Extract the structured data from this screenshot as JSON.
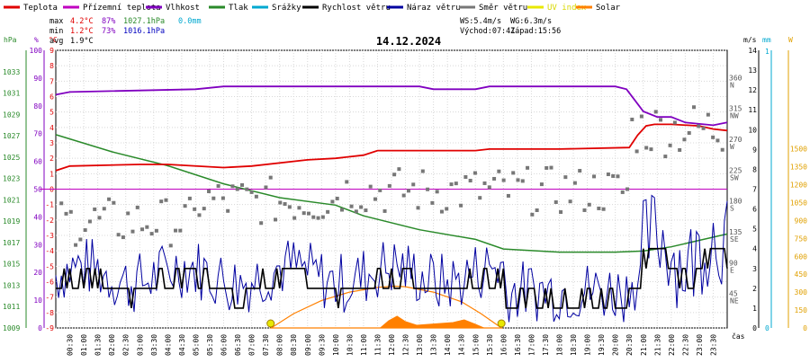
{
  "chart_data": {
    "type": "line",
    "title": "14.12.2024",
    "legend": [
      {
        "name": "Teplota",
        "color": "#e00000"
      },
      {
        "name": "Přízemní teplota",
        "color": "#c000c0"
      },
      {
        "name": "Vlhkost",
        "color": "#8000c0"
      },
      {
        "name": "Tlak",
        "color": "#2a8a2a"
      },
      {
        "name": "Srážky",
        "color": "#00a8d0"
      },
      {
        "name": "Rychlost větru",
        "color": "#000000"
      },
      {
        "name": "Náraz větru",
        "color": "#0000a0"
      },
      {
        "name": "Směr větru",
        "color": "#777777"
      },
      {
        "name": "UV index",
        "color": "#e8e800"
      },
      {
        "name": "Solar",
        "color": "#ff8000"
      }
    ],
    "stats": {
      "max": {
        "label": "max",
        "temp": "4.2°C",
        "hum": "87%",
        "press": "1027.1hPa",
        "rain": "0.0mm"
      },
      "min": {
        "label": "min",
        "temp": "1.2°C",
        "hum": "73%",
        "press": "1016.1hPa"
      },
      "avg": {
        "label": "avg",
        "temp": "1.9°C"
      }
    },
    "info": {
      "ws": "WS:5.4m/s",
      "wg": "WG:6.3m/s",
      "sunrise": "Východ:07:41",
      "sunset": "Západ:15:56"
    },
    "axes": {
      "hpa": {
        "unit": "hPa",
        "ticks": [
          "1009",
          "1011",
          "1013",
          "1015",
          "1017",
          "1019",
          "1021",
          "1023",
          "1025",
          "1027",
          "1029",
          "1031",
          "1033"
        ],
        "range": [
          1009,
          1035
        ]
      },
      "pct": {
        "unit": "%",
        "ticks": [
          "0",
          "10",
          "20",
          "30",
          "40",
          "50",
          "60",
          "70",
          "80",
          "90",
          "100"
        ],
        "range": [
          0,
          100
        ]
      },
      "temp": {
        "unit": "°C",
        "ticks": [
          "-9",
          "-8",
          "-7",
          "-6",
          "-5",
          "-4",
          "-3",
          "-2",
          "-1",
          "0",
          "1",
          "2",
          "3",
          "4",
          "5",
          "6",
          "7",
          "8",
          "9"
        ],
        "range": [
          -9,
          9
        ]
      },
      "dir": {
        "ticks": [
          {
            "deg": 360,
            "lab": "N"
          },
          {
            "deg": 315,
            "lab": "NW"
          },
          {
            "deg": 270,
            "lab": "W"
          },
          {
            "deg": 225,
            "lab": "SW"
          },
          {
            "deg": 180,
            "lab": "S"
          },
          {
            "deg": 135,
            "lab": "SE"
          },
          {
            "deg": 90,
            "lab": "E"
          },
          {
            "deg": 45,
            "lab": "NE"
          }
        ],
        "range": [
          0,
          405
        ]
      },
      "ms": {
        "unit": "m/s",
        "ticks": [
          "0",
          "1",
          "2",
          "3",
          "4",
          "5",
          "6",
          "7",
          "8",
          "9",
          "10",
          "11",
          "12",
          "13",
          "14"
        ],
        "range": [
          0,
          14
        ]
      },
      "mm": {
        "unit": "mm",
        "ticks": [
          "0",
          "1"
        ],
        "range": [
          0,
          1
        ]
      },
      "w": {
        "unit": "W",
        "ticks": [
          "0",
          "150",
          "300",
          "450",
          "600",
          "750",
          "900",
          "1050",
          "1200",
          "1350",
          "1500"
        ],
        "range": [
          0,
          1500
        ]
      },
      "x": {
        "label": "čas",
        "ticks": [
          "00:30",
          "01:00",
          "01:30",
          "02:00",
          "02:30",
          "03:00",
          "03:30",
          "04:00",
          "04:30",
          "05:00",
          "05:30",
          "06:00",
          "06:30",
          "07:00",
          "07:30",
          "08:00",
          "08:30",
          "09:00",
          "09:30",
          "10:00",
          "10:30",
          "11:00",
          "11:30",
          "12:00",
          "12:30",
          "13:00",
          "13:30",
          "14:00",
          "14:30",
          "15:00",
          "15:30",
          "16:00",
          "16:30",
          "17:00",
          "17:30",
          "18:00",
          "18:30",
          "19:00",
          "19:30",
          "20:00",
          "20:30",
          "21:00",
          "21:30",
          "22:00",
          "22:30",
          "23:00",
          "23:30"
        ],
        "range_hours": [
          0,
          24
        ]
      }
    },
    "series": [
      {
        "name": "Teplota",
        "unit": "°C",
        "x": [
          0,
          0.5,
          3,
          4,
          6,
          7,
          9,
          10,
          11,
          11.5,
          15,
          15.5,
          18,
          20.5,
          20.8,
          21.1,
          21.4,
          22,
          23,
          23.5,
          24
        ],
        "values": [
          1.2,
          1.5,
          1.6,
          1.6,
          1.4,
          1.5,
          1.9,
          2.0,
          2.2,
          2.5,
          2.5,
          2.6,
          2.6,
          2.7,
          3.5,
          4.1,
          4.2,
          4.2,
          4.1,
          3.9,
          3.8
        ]
      },
      {
        "name": "Vlhkost",
        "unit": "%",
        "x": [
          0,
          0.5,
          5,
          6,
          13,
          13.5,
          15,
          15.5,
          20,
          20.4,
          20.7,
          21,
          21.5,
          22,
          22.5,
          23.5,
          24
        ],
        "values": [
          84,
          85,
          86,
          87,
          87,
          86,
          86,
          87,
          87,
          86,
          82,
          78,
          76,
          76,
          74,
          73,
          74
        ]
      },
      {
        "name": "Tlak",
        "unit": "hPa",
        "x": [
          0,
          2,
          4,
          6,
          8,
          10,
          11,
          13,
          15,
          16,
          18,
          20,
          21,
          22,
          23,
          24
        ],
        "values": [
          1027.1,
          1025.5,
          1024.2,
          1022.5,
          1021.2,
          1020.5,
          1019.5,
          1018.2,
          1017.3,
          1016.4,
          1016.1,
          1016.1,
          1016.2,
          1016.6,
          1017.2,
          1017.8
        ]
      },
      {
        "name": "Přízemní teplota",
        "unit": "°C",
        "x": [
          0,
          24
        ],
        "values": [
          0,
          0
        ]
      },
      {
        "name": "Solar",
        "unit": "W",
        "x": [
          7.7,
          8.5,
          9.5,
          10.5,
          11.5,
          12.1,
          12.5,
          13.5,
          14.5,
          15.2,
          15.93
        ],
        "values": [
          0,
          120,
          230,
          300,
          340,
          350,
          345,
          300,
          220,
          120,
          0
        ]
      }
    ],
    "sun_markers": [
      7.68,
      15.93
    ]
  }
}
